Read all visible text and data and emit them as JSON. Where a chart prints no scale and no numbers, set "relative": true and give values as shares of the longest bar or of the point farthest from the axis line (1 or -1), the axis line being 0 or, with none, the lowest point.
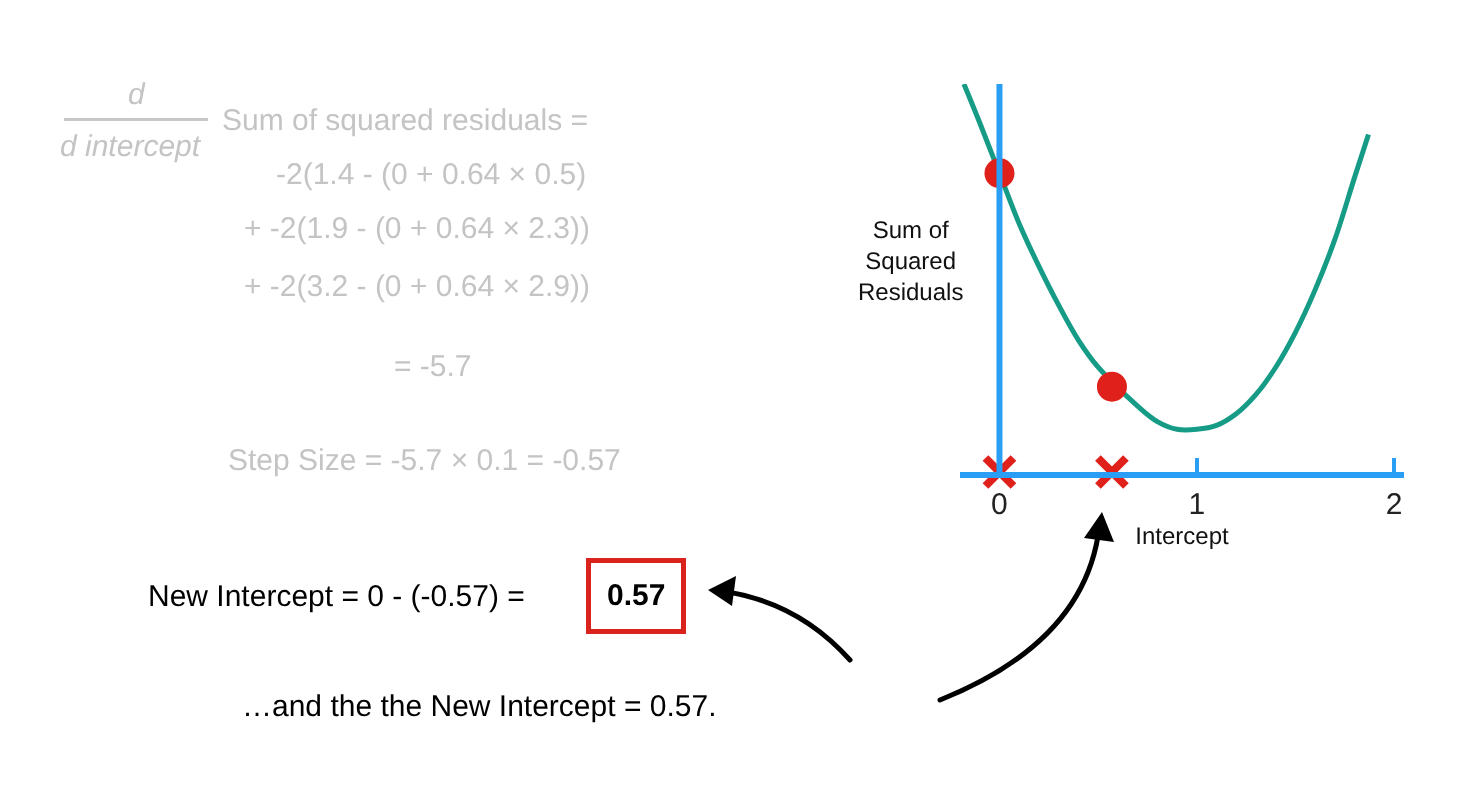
{
  "chart_data": {
    "type": "line",
    "xlabel": "Intercept",
    "ylabel": "Sum of\nSquared\nResiduals",
    "relative": true,
    "xlim": [
      -0.2,
      2.05
    ],
    "ref_lines": [
      {
        "axis": "x",
        "value": 0,
        "color": "#2a9df4"
      }
    ],
    "xticks": [
      0,
      1,
      2
    ],
    "line_style": "solid",
    "series": [
      {
        "color": "#169c86",
        "x": [
          -0.18,
          -0.1,
          0,
          0.1,
          0.2,
          0.3,
          0.4,
          0.5,
          0.7,
          0.8,
          0.9,
          1.0,
          1.1,
          1.2,
          1.3,
          1.4,
          1.5,
          1.6,
          1.7,
          1.8,
          1.87
        ],
        "values": [
          1.0,
          0.9,
          0.77,
          0.64,
          0.53,
          0.43,
          0.34,
          0.27,
          0.17,
          0.13,
          0.11,
          0.11,
          0.12,
          0.15,
          0.2,
          0.27,
          0.36,
          0.47,
          0.6,
          0.76,
          0.87
        ]
      },
      {
        "type": "scatter",
        "color": "#e0201b",
        "marker": "circle",
        "x": [
          0,
          0.57
        ],
        "values": [
          0.77,
          0.22
        ]
      },
      {
        "type": "scatter",
        "color": "#e0201b",
        "marker": "cross",
        "x": [
          0,
          0.57
        ],
        "values": [
          0,
          0
        ]
      }
    ],
    "annotations": [
      "d",
      "d intercept",
      "Sum of squared residuals =",
      "-2(1.4 - (0 + 0.64 × 0.5)",
      "+ -2(1.9 - (0 + 0.64 × 2.3))",
      "+ -2(3.2 - (0 + 0.64 × 2.9))",
      "= -5.7",
      "Step Size = -5.7 × 0.1 = -0.57",
      "New Intercept = 0 - (-0.57) =",
      "0.57",
      "…and the the New Intercept = 0.57."
    ]
  }
}
